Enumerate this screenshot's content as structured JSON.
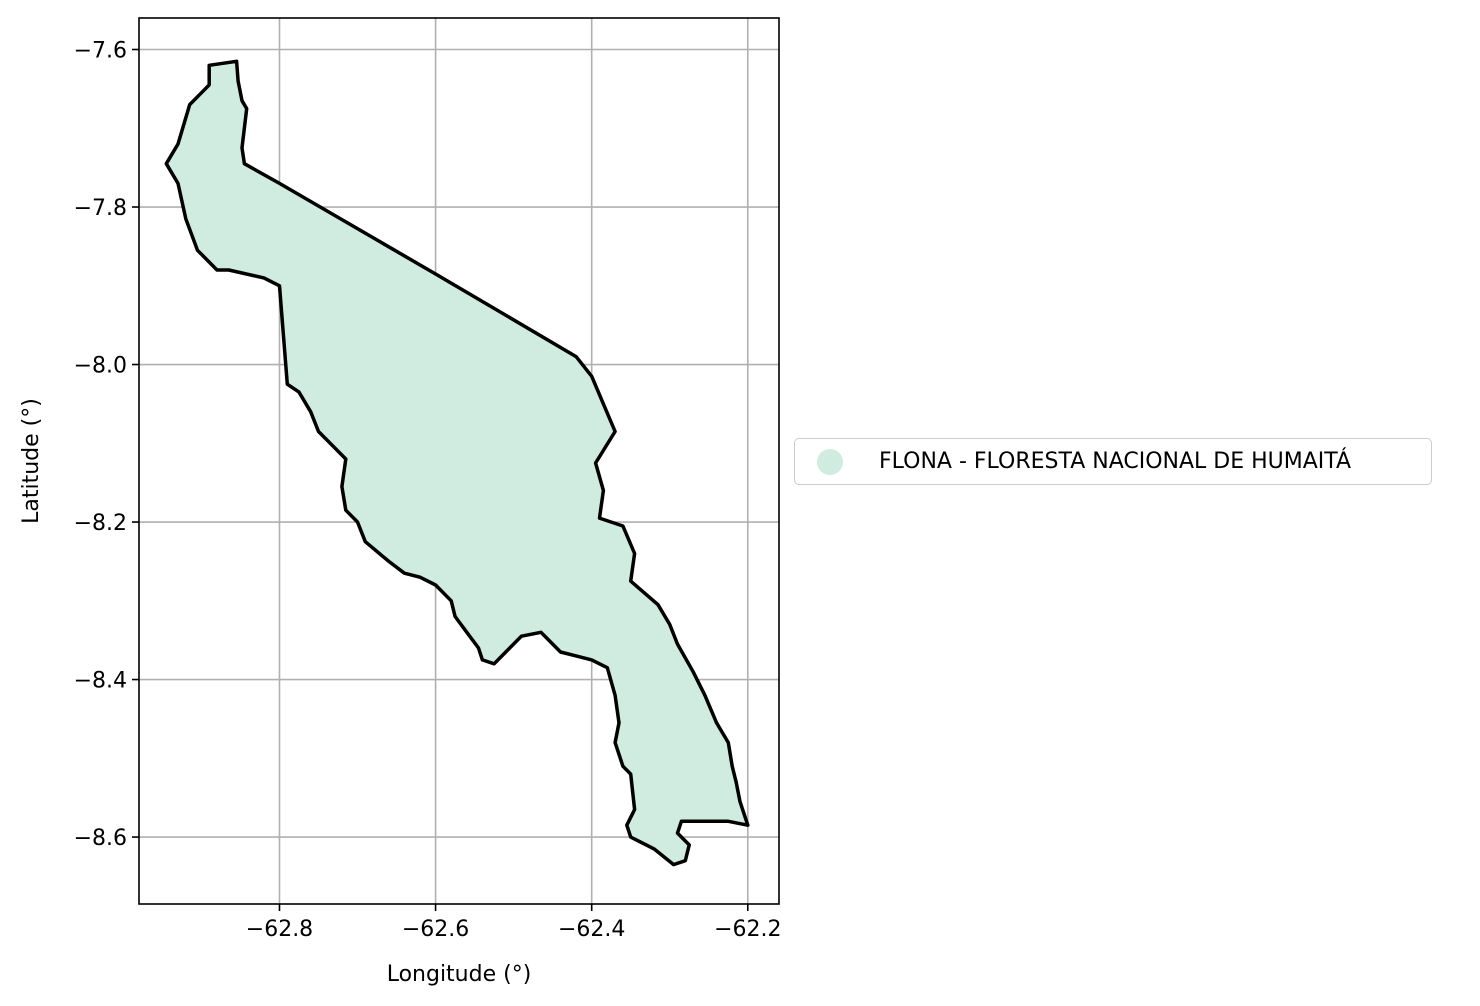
{
  "map": {
    "xlabel": "Longitude (°)",
    "ylabel": "Latitude (°)",
    "xlim": [
      -62.98,
      -62.16
    ],
    "ylim": [
      -8.685,
      -7.56
    ],
    "xticks": [
      -62.8,
      -62.6,
      -62.4,
      -62.2
    ],
    "yticks": [
      -7.6,
      -7.8,
      -8.0,
      -8.2,
      -8.4,
      -8.6
    ],
    "xtick_labels": [
      "−62.8",
      "−62.6",
      "−62.4",
      "−62.2"
    ],
    "ytick_labels": [
      "−7.6",
      "−7.8",
      "−8.0",
      "−8.2",
      "−8.4",
      "−8.6"
    ],
    "grid": true,
    "fill_color": "#d0ebdf",
    "outline_color": "#000000",
    "grid_color": "#b0b0b0"
  },
  "legend": {
    "placement": "center-right outside",
    "label": "FLONA - FLORESTA NACIONAL DE HUMAITÁ",
    "color": "#d0ebdf"
  },
  "chart_data": {
    "type": "map",
    "feature": "FLONA - FLORESTA NACIONAL DE HUMAITÁ",
    "boundary": [
      [
        -62.89,
        -7.62
      ],
      [
        -62.855,
        -7.615
      ],
      [
        -62.853,
        -7.64
      ],
      [
        -62.848,
        -7.665
      ],
      [
        -62.842,
        -7.675
      ],
      [
        -62.848,
        -7.725
      ],
      [
        -62.845,
        -7.745
      ],
      [
        -62.8,
        -7.77
      ],
      [
        -62.6,
        -7.885
      ],
      [
        -62.42,
        -7.99
      ],
      [
        -62.4,
        -8.015
      ],
      [
        -62.385,
        -8.05
      ],
      [
        -62.37,
        -8.085
      ],
      [
        -62.395,
        -8.125
      ],
      [
        -62.385,
        -8.16
      ],
      [
        -62.39,
        -8.195
      ],
      [
        -62.36,
        -8.205
      ],
      [
        -62.345,
        -8.24
      ],
      [
        -62.35,
        -8.275
      ],
      [
        -62.315,
        -8.305
      ],
      [
        -62.3,
        -8.33
      ],
      [
        -62.29,
        -8.355
      ],
      [
        -62.27,
        -8.39
      ],
      [
        -62.255,
        -8.42
      ],
      [
        -62.24,
        -8.455
      ],
      [
        -62.225,
        -8.48
      ],
      [
        -62.22,
        -8.51
      ],
      [
        -62.215,
        -8.53
      ],
      [
        -62.21,
        -8.555
      ],
      [
        -62.2,
        -8.585
      ],
      [
        -62.225,
        -8.58
      ],
      [
        -62.265,
        -8.58
      ],
      [
        -62.285,
        -8.58
      ],
      [
        -62.29,
        -8.595
      ],
      [
        -62.275,
        -8.61
      ],
      [
        -62.28,
        -8.63
      ],
      [
        -62.295,
        -8.635
      ],
      [
        -62.32,
        -8.615
      ],
      [
        -62.35,
        -8.6
      ],
      [
        -62.355,
        -8.585
      ],
      [
        -62.345,
        -8.565
      ],
      [
        -62.35,
        -8.52
      ],
      [
        -62.36,
        -8.51
      ],
      [
        -62.37,
        -8.48
      ],
      [
        -62.365,
        -8.455
      ],
      [
        -62.37,
        -8.42
      ],
      [
        -62.38,
        -8.385
      ],
      [
        -62.4,
        -8.375
      ],
      [
        -62.42,
        -8.37
      ],
      [
        -62.44,
        -8.365
      ],
      [
        -62.45,
        -8.355
      ],
      [
        -62.465,
        -8.34
      ],
      [
        -62.49,
        -8.345
      ],
      [
        -62.51,
        -8.365
      ],
      [
        -62.525,
        -8.38
      ],
      [
        -62.54,
        -8.375
      ],
      [
        -62.545,
        -8.36
      ],
      [
        -62.56,
        -8.34
      ],
      [
        -62.575,
        -8.32
      ],
      [
        -62.58,
        -8.3
      ],
      [
        -62.6,
        -8.28
      ],
      [
        -62.62,
        -8.27
      ],
      [
        -62.64,
        -8.265
      ],
      [
        -62.66,
        -8.25
      ],
      [
        -62.69,
        -8.225
      ],
      [
        -62.7,
        -8.2
      ],
      [
        -62.715,
        -8.185
      ],
      [
        -62.72,
        -8.155
      ],
      [
        -62.715,
        -8.12
      ],
      [
        -62.73,
        -8.105
      ],
      [
        -62.75,
        -8.085
      ],
      [
        -62.76,
        -8.06
      ],
      [
        -62.775,
        -8.035
      ],
      [
        -62.79,
        -8.025
      ],
      [
        -62.8,
        -7.9
      ],
      [
        -62.82,
        -7.89
      ],
      [
        -62.865,
        -7.88
      ],
      [
        -62.88,
        -7.88
      ],
      [
        -62.905,
        -7.855
      ],
      [
        -62.92,
        -7.815
      ],
      [
        -62.93,
        -7.77
      ],
      [
        -62.945,
        -7.745
      ],
      [
        -62.93,
        -7.72
      ],
      [
        -62.915,
        -7.67
      ],
      [
        -62.9,
        -7.655
      ],
      [
        -62.89,
        -7.645
      ],
      [
        -62.89,
        -7.62
      ]
    ]
  }
}
